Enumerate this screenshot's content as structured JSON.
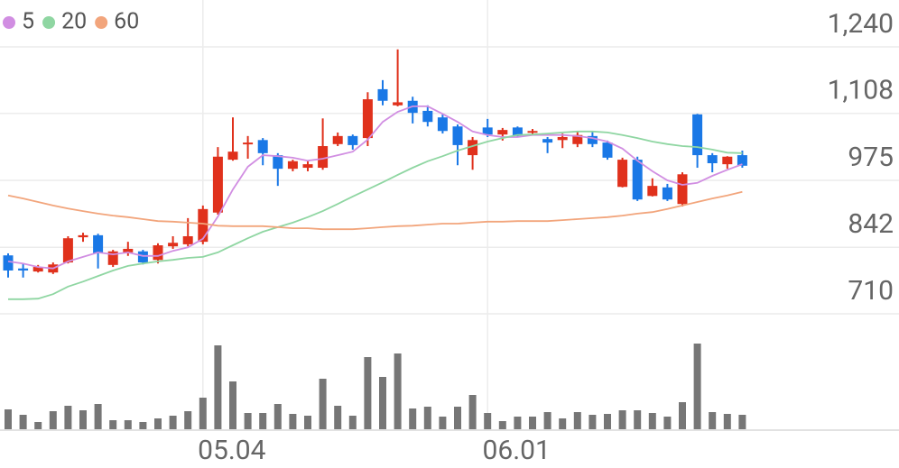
{
  "chart_data": {
    "type": "candlestick",
    "categories": [
      null,
      null,
      null,
      null,
      null,
      null,
      null,
      null,
      null,
      null,
      null,
      null,
      null,
      "05.04",
      null,
      null,
      null,
      null,
      null,
      null,
      null,
      null,
      null,
      null,
      null,
      null,
      null,
      null,
      null,
      null,
      null,
      null,
      "06.01",
      null,
      null,
      null,
      null,
      null,
      null,
      null,
      null,
      null,
      null,
      null,
      null,
      null,
      null,
      null,
      null,
      null
    ],
    "open": [
      826,
      800,
      794,
      792,
      812,
      862,
      866,
      807,
      832,
      834,
      817,
      844,
      848,
      853,
      911,
      1016,
      1047,
      1055,
      1025,
      998,
      1000,
      1000,
      1047,
      1063,
      1059,
      1156,
      1124,
      1133,
      1113,
      1100,
      1082,
      1025,
      1080,
      1066,
      1080,
      1070,
      1057,
      1055,
      1047,
      1063,
      1050,
      962,
      1016,
      944,
      961,
      928,
      1106,
      1025,
      1007,
      1025
    ],
    "high": [
      830,
      810,
      807,
      812,
      864,
      871,
      869,
      837,
      853,
      837,
      850,
      864,
      900,
      925,
      1041,
      1100,
      1063,
      1059,
      1029,
      1016,
      1014,
      1098,
      1070,
      1066,
      1150,
      1174,
      1235,
      1141,
      1124,
      1106,
      1086,
      1061,
      1097,
      1079,
      1082,
      1077,
      1061,
      1068,
      1073,
      1072,
      1054,
      1020,
      1022,
      979,
      968,
      991,
      1107,
      1029,
      1023,
      1034
    ],
    "low": [
      782,
      782,
      792,
      789,
      810,
      853,
      800,
      803,
      825,
      808,
      810,
      839,
      844,
      848,
      907,
      1014,
      1018,
      1005,
      964,
      993,
      993,
      996,
      1043,
      1036,
      1043,
      1124,
      1122,
      1088,
      1082,
      1068,
      1005,
      996,
      1061,
      1054,
      1061,
      1066,
      1029,
      1039,
      1041,
      1041,
      1016,
      961,
      934,
      943,
      934,
      923,
      1000,
      991,
      998,
      1000
    ],
    "close": [
      796,
      796,
      803,
      808,
      860,
      866,
      830,
      834,
      839,
      812,
      846,
      851,
      864,
      918,
      1022,
      1032,
      1050,
      1029,
      998,
      1013,
      1007,
      1043,
      1063,
      1045,
      1136,
      1133,
      1130,
      1109,
      1091,
      1073,
      1045,
      1055,
      1066,
      1075,
      1063,
      1073,
      1050,
      1061,
      1065,
      1047,
      1020,
      1016,
      937,
      964,
      937,
      987,
      1025,
      1009,
      1022,
      1004
    ],
    "volume": [
      22,
      16,
      8,
      20,
      26,
      21,
      28,
      10,
      10,
      8,
      12,
      15,
      20,
      35,
      93,
      53,
      18,
      18,
      28,
      17,
      15,
      56,
      26,
      15,
      80,
      58,
      84,
      23,
      25,
      14,
      25,
      38,
      18,
      9,
      14,
      14,
      19,
      12,
      19,
      16,
      17,
      21,
      21,
      18,
      14,
      30,
      95,
      19,
      17,
      16
    ],
    "series": [
      {
        "name": "5",
        "color": "#d18ee2",
        "values": [
          814,
          810,
          803,
          800,
          814,
          823,
          832,
          828,
          832,
          825,
          825,
          835,
          842,
          859,
          903,
          957,
          1002,
          1025,
          1023,
          1020,
          1014,
          1018,
          1025,
          1032,
          1056,
          1091,
          1111,
          1122,
          1122,
          1107,
          1091,
          1072,
          1065,
          1061,
          1061,
          1065,
          1065,
          1065,
          1063,
          1059,
          1052,
          1038,
          1014,
          993,
          975,
          966,
          970,
          984,
          996,
          1007
        ]
      },
      {
        "name": "20",
        "color": "#8fd6a2",
        "values": [
          739,
          739,
          740,
          749,
          764,
          774,
          785,
          796,
          805,
          810,
          814,
          817,
          821,
          823,
          832,
          846,
          860,
          873,
          882,
          891,
          902,
          914,
          928,
          943,
          957,
          971,
          986,
          1000,
          1013,
          1023,
          1034,
          1043,
          1052,
          1059,
          1065,
          1066,
          1068,
          1070,
          1072,
          1072,
          1070,
          1065,
          1059,
          1052,
          1047,
          1043,
          1041,
          1036,
          1030,
          1029
        ]
      },
      {
        "name": "60",
        "color": "#f2a57c",
        "values": [
          945,
          939,
          932,
          925,
          919,
          914,
          909,
          905,
          902,
          898,
          894,
          893,
          891,
          889,
          885,
          884,
          884,
          884,
          882,
          880,
          880,
          878,
          878,
          878,
          880,
          882,
          884,
          885,
          887,
          889,
          889,
          891,
          893,
          893,
          894,
          894,
          894,
          896,
          898,
          900,
          902,
          905,
          909,
          912,
          918,
          925,
          932,
          939,
          945,
          952
        ]
      }
    ],
    "up_color": "#e0311c",
    "down_color": "#1a78e6",
    "volume_color": "#767676",
    "ylim": [
      710,
      1240
    ],
    "yticks": [
      {
        "value": 1240,
        "label": "1,240"
      },
      {
        "value": 1108,
        "label": "1,108"
      },
      975,
      842,
      710
    ],
    "y2lim": [
      0,
      100
    ],
    "grid": true,
    "legend": "top-left"
  }
}
